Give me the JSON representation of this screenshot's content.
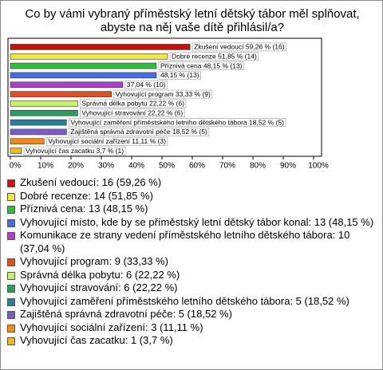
{
  "chart_data": {
    "type": "bar",
    "orientation": "horizontal",
    "title": "Co by vámi vybraný příměstský letní dětský tábor měl splňovat, abyste na něj vaše dítě přihlásil/a?",
    "categories": [
      "Zkušení vedoucí",
      "Dobré recenze",
      "Příznivá cena",
      "Vyhovující místo, kde by se příměstský letní dětský tábor konal",
      "Komunikace ze strany vedení příměstského letního dětského tábora",
      "Vyhovující program",
      "Správná délka pobytu",
      "Vyhovující stravování",
      "Vyhovující zaměření příměstského letního dětského tábora",
      "Zajištěná správná zdravotní péče",
      "Vyhovující sociální zařízení",
      "Vyhovující čas zacatku"
    ],
    "values": [
      59.26,
      51.85,
      48.15,
      48.15,
      37.04,
      33.33,
      22.22,
      22.22,
      18.52,
      18.52,
      11.11,
      3.7
    ],
    "value_labels": [
      "Zkušení vedoucí 59,26 % (16)",
      "Dobré recenze 51,85 % (14)",
      "Příznivá cena 48,15 % (13)",
      "48,15 % (13)",
      "37,04 % (10)",
      "Vyhovující program 33,33 % (9)",
      "Správná délka pobytu 22,22 % (6)",
      "Vyhovující stravování 22,22 % (6)",
      "Vyhovující zaměření příměstského letního dětského tábora 18,52 % (5)",
      "Zajištěná správná zdravotní péče 18,52 % (5)",
      "Vyhovující sociální zařízení 11,11 % (3)",
      "Vyhovující čas zacatku 3,7 % (1)"
    ],
    "legend_labels": [
      "Zkušení vedoucí: 16 (59,26 %)",
      "Dobré recenze: 14 (51,85 %)",
      "Příznivá cena: 13 (48,15 %)",
      "Vyhovující místo, kde by se příměstský letní dětský tábor konal: 13 (48,15 %)",
      "Komunikace ze strany vedení příměstského letního dětského tábora: 10 (37,04 %)",
      "Vyhovující program: 9 (33,33 %)",
      "Správná délka pobytu: 6 (22,22 %)",
      "Vyhovující stravování: 6 (22,22 %)",
      "Vyhovující zaměření příměstského letního dětského tábora: 5 (18,52 %)",
      "Zajištěná správná zdravotní péče: 5 (18,52 %)",
      "Vyhovující sociální zařízení: 3 (11,11 %)",
      "Vyhovující čas zacatku: 1 (3,7 %)"
    ],
    "colors": [
      "#c81010",
      "#f2e640",
      "#2fbf3a",
      "#4a6be0",
      "#b03cd0",
      "#e0501e",
      "#c8f070",
      "#2e9a60",
      "#2a7c98",
      "#7a5cc8",
      "#f08a20",
      "#f0b820"
    ],
    "xlim": [
      0,
      100
    ],
    "xticks": [
      {
        "value": 0,
        "label": "0%"
      },
      {
        "value": 10,
        "label": "10%"
      },
      {
        "value": 20,
        "label": "20%"
      },
      {
        "value": 30,
        "label": "30%"
      },
      {
        "value": 40,
        "label": "40%"
      },
      {
        "value": 50,
        "label": "50%"
      },
      {
        "value": 60,
        "label": "60%"
      },
      {
        "value": 70,
        "label": "70%"
      },
      {
        "value": 80,
        "label": "80%"
      },
      {
        "value": 90,
        "label": "90%"
      },
      {
        "value": 100,
        "label": "100%"
      }
    ]
  }
}
